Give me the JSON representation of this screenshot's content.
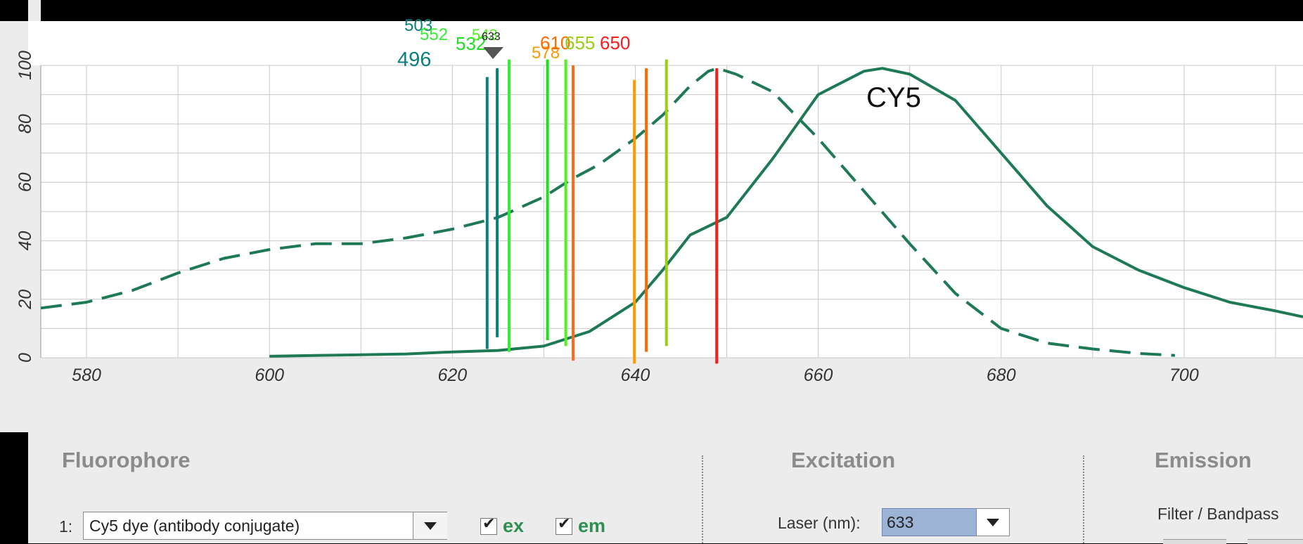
{
  "chart_data": {
    "type": "line",
    "title": "",
    "xlabel": "",
    "ylabel": "",
    "xlim": [
      575,
      713
    ],
    "ylim": [
      0,
      100
    ],
    "x_ticks": [
      580,
      600,
      620,
      640,
      660,
      680,
      700
    ],
    "y_ticks": [
      0,
      20,
      40,
      60,
      80,
      100
    ],
    "grid": true,
    "annotation_label": "CY5",
    "series": [
      {
        "style": "dashed",
        "x": [
          575,
          580,
          585,
          590,
          595,
          600,
          605,
          610,
          615,
          620,
          625,
          630,
          633,
          636,
          640,
          643,
          646,
          648,
          649,
          651,
          655,
          660,
          665,
          670,
          675,
          680,
          685,
          690,
          695,
          699
        ],
        "y": [
          17,
          19,
          23,
          29,
          34,
          37,
          39,
          39,
          41,
          44,
          48,
          55,
          61,
          66,
          75,
          83,
          93,
          98,
          99,
          97,
          91,
          75,
          57,
          39,
          22,
          10,
          5,
          3,
          1.5,
          0.8
        ]
      },
      {
        "style": "solid",
        "x": [
          600,
          605,
          610,
          615,
          620,
          625,
          630,
          635,
          640,
          643,
          646,
          650,
          655,
          660,
          665,
          667,
          670,
          675,
          680,
          685,
          690,
          695,
          700,
          705,
          710,
          713
        ],
        "y": [
          0.5,
          0.8,
          1,
          1.3,
          2,
          2.5,
          4,
          9,
          19,
          30,
          42,
          48,
          68,
          90,
          98,
          99,
          97,
          88,
          70,
          52,
          38,
          30,
          24,
          19,
          16,
          14
        ]
      }
    ],
    "wavelength_markers": [
      {
        "label": "496",
        "x": 623.8,
        "color": "#0a7f7f",
        "y_top": 96
      },
      {
        "label": "503",
        "x": 624.9,
        "color": "#0a7f7f",
        "y_top": 99
      },
      {
        "label": "552",
        "x": 626.2,
        "color": "#33ee33",
        "y_top": 102
      },
      {
        "label": "532",
        "x": 630.4,
        "color": "#22dd22",
        "y_top": 102
      },
      {
        "label": "543",
        "x": 632.4,
        "color": "#55ee22",
        "y_top": 102
      },
      {
        "label": "633",
        "x": 633.2,
        "color": "#ff6a1a",
        "y_top": 100
      },
      {
        "label": "578",
        "x": 639.9,
        "color": "#ff9900",
        "y_top": 95
      },
      {
        "label": "610",
        "x": 641.2,
        "color": "#ff6a00",
        "y_top": 99
      },
      {
        "label": "655",
        "x": 643.4,
        "color": "#9acd1a",
        "y_top": 102
      },
      {
        "label": "650",
        "x": 648.9,
        "color": "#ff1a1a",
        "y_top": 99
      }
    ]
  },
  "panel": {
    "fluorophore_title": "Fluorophore",
    "excitation_title": "Excitation",
    "emission_title": "Emission",
    "row_index": "1:",
    "fluor_select_value": "Cy5 dye (antibody conjugate)",
    "ex_label": "ex",
    "em_label": "em",
    "ex_checked": true,
    "em_checked": true,
    "laser_label": "Laser (nm):",
    "laser_value": "633",
    "filter_label": "Filter / Bandpass"
  }
}
